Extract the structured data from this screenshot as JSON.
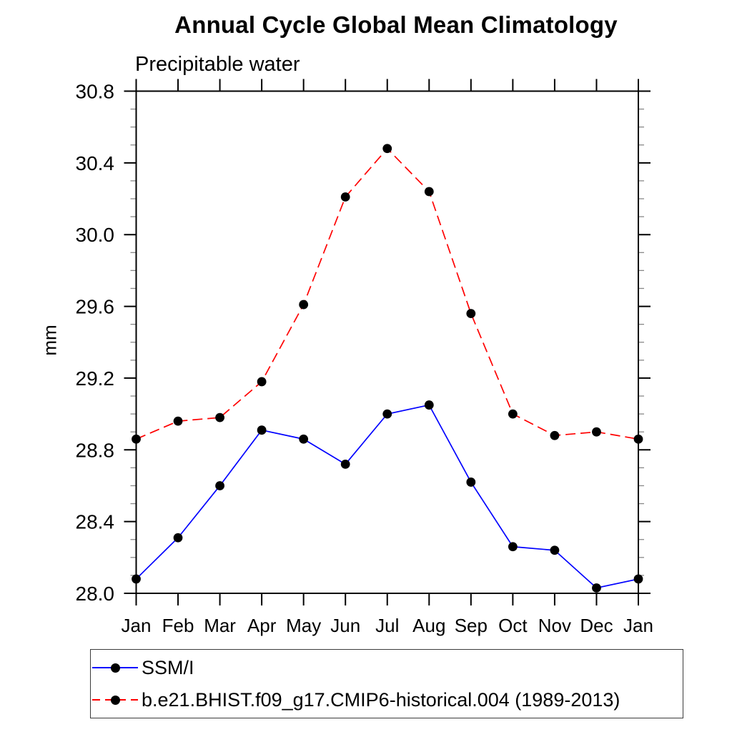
{
  "chart_data": {
    "type": "line",
    "title": "Annual Cycle Global Mean Climatology",
    "subtitle": "Precipitable water",
    "ylabel": "mm",
    "xlabel": "",
    "categories": [
      "Jan",
      "Feb",
      "Mar",
      "Apr",
      "May",
      "Jun",
      "Jul",
      "Aug",
      "Sep",
      "Oct",
      "Nov",
      "Dec",
      "Jan"
    ],
    "series": [
      {
        "name": "SSM/I",
        "color": "#0000ff",
        "line_style": "solid",
        "marker": "circle",
        "marker_color": "#000000",
        "values": [
          28.08,
          28.31,
          28.6,
          28.91,
          28.86,
          28.72,
          29.0,
          29.05,
          28.62,
          28.26,
          28.24,
          28.03,
          28.08
        ]
      },
      {
        "name": "b.e21.BHIST.f09_g17.CMIP6-historical.004 (1989-2013)",
        "color": "#ff0000",
        "line_style": "dashed",
        "marker": "circle",
        "marker_color": "#000000",
        "values": [
          28.86,
          28.96,
          28.98,
          29.18,
          29.61,
          30.21,
          30.48,
          30.24,
          29.56,
          29.0,
          28.88,
          28.9,
          28.86
        ]
      }
    ],
    "ylim": [
      28.0,
      30.8
    ],
    "ytick_major_step": 0.4,
    "ytick_minor_step": 0.1,
    "ytick_major_labels": [
      "28.0",
      "28.4",
      "28.8",
      "29.2",
      "29.6",
      "30.0",
      "30.4",
      "30.8"
    ],
    "grid": false,
    "legend_position": "bottom-left",
    "axis_color": "#000000",
    "minor_tick_color": "#888888"
  }
}
